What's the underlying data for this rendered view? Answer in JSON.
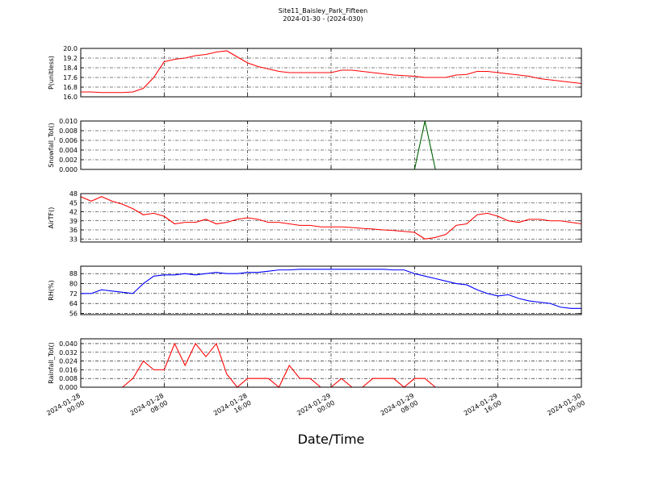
{
  "chart_data": {
    "title": "Site11_Baisley_Park_Fifteen",
    "subtitle": "2024-01-30 - (2024-030)",
    "xlabel": "Date/Time",
    "x": [
      "2024-01-28 00:00",
      "2024-01-28 01:00",
      "2024-01-28 02:00",
      "2024-01-28 03:00",
      "2024-01-28 04:00",
      "2024-01-28 05:00",
      "2024-01-28 06:00",
      "2024-01-28 07:00",
      "2024-01-28 08:00",
      "2024-01-28 09:00",
      "2024-01-28 10:00",
      "2024-01-28 11:00",
      "2024-01-28 12:00",
      "2024-01-28 13:00",
      "2024-01-28 14:00",
      "2024-01-28 15:00",
      "2024-01-28 16:00",
      "2024-01-28 17:00",
      "2024-01-28 18:00",
      "2024-01-28 19:00",
      "2024-01-28 20:00",
      "2024-01-28 21:00",
      "2024-01-28 22:00",
      "2024-01-28 23:00",
      "2024-01-29 00:00",
      "2024-01-29 01:00",
      "2024-01-29 02:00",
      "2024-01-29 03:00",
      "2024-01-29 04:00",
      "2024-01-29 05:00",
      "2024-01-29 06:00",
      "2024-01-29 07:00",
      "2024-01-29 08:00",
      "2024-01-29 09:00",
      "2024-01-29 10:00",
      "2024-01-29 11:00",
      "2024-01-29 12:00",
      "2024-01-29 13:00",
      "2024-01-29 14:00",
      "2024-01-29 15:00",
      "2024-01-29 16:00",
      "2024-01-29 17:00",
      "2024-01-29 18:00",
      "2024-01-29 19:00",
      "2024-01-29 20:00",
      "2024-01-29 21:00",
      "2024-01-29 22:00",
      "2024-01-29 23:00",
      "2024-01-30 00:00"
    ],
    "xlim": [
      "2024-01-28 00:00",
      "2024-01-30 00:00"
    ],
    "xticks": [
      {
        "value": "2024-01-28 00:00",
        "label": [
          "2024-01-28",
          "00:00"
        ]
      },
      {
        "value": "2024-01-28 08:00",
        "label": [
          "2024-01-28",
          "08:00"
        ]
      },
      {
        "value": "2024-01-28 16:00",
        "label": [
          "2024-01-28",
          "16:00"
        ]
      },
      {
        "value": "2024-01-29 00:00",
        "label": [
          "2024-01-29",
          "00:00"
        ]
      },
      {
        "value": "2024-01-29 08:00",
        "label": [
          "2024-01-29",
          "08:00"
        ]
      },
      {
        "value": "2024-01-29 16:00",
        "label": [
          "2024-01-29",
          "16:00"
        ]
      },
      {
        "value": "2024-01-30 00:00",
        "label": [
          "2024-01-30",
          "00:00"
        ]
      }
    ],
    "grid": true,
    "panels": [
      {
        "type": "line",
        "ylabel": "P(unitless)",
        "ylim": [
          16.0,
          20.0
        ],
        "yticks": [
          {
            "value": 16.0,
            "label": "16.0"
          },
          16.8,
          17.6,
          18.4,
          19.2,
          {
            "value": 20.0,
            "label": "20.0"
          }
        ],
        "series": [
          {
            "color": "#ff0000",
            "values": [
              16.4,
              16.4,
              16.35,
              16.35,
              16.35,
              16.4,
              16.7,
              17.6,
              18.9,
              19.1,
              19.2,
              19.4,
              19.5,
              19.7,
              19.8,
              19.3,
              18.8,
              18.5,
              18.3,
              18.1,
              18.0,
              18.0,
              18.0,
              18.0,
              18.0,
              18.2,
              18.2,
              18.1,
              18.0,
              17.9,
              17.8,
              17.75,
              17.7,
              17.6,
              17.6,
              17.6,
              17.8,
              17.85,
              18.1,
              18.1,
              18.0,
              17.9,
              17.8,
              17.7,
              17.5,
              17.4,
              17.3,
              17.2,
              17.1
            ]
          }
        ]
      },
      {
        "type": "line",
        "ylabel": "Snowfall_Tot()",
        "ylim": [
          0,
          0.01
        ],
        "yticks": [
          {
            "value": 0,
            "label": "0.000"
          },
          0.002,
          0.004,
          0.006,
          0.008,
          {
            "value": 0.01,
            "label": "0.010"
          }
        ],
        "series": [
          {
            "color": "#006400",
            "values": [
              0,
              0,
              0,
              0,
              0,
              0,
              0,
              0,
              0,
              0,
              0,
              0,
              0,
              0,
              0,
              0,
              0,
              0,
              0,
              0,
              0,
              0,
              0,
              0,
              0,
              0,
              0,
              0,
              0,
              0,
              0,
              0,
              0,
              0.01,
              0,
              0,
              0,
              0,
              0,
              0,
              0,
              0,
              0,
              0,
              0,
              0,
              0,
              0,
              0
            ]
          }
        ]
      },
      {
        "type": "line",
        "ylabel": "AirTF()",
        "ylim": [
          32,
          48
        ],
        "yticks": [
          33,
          36,
          39,
          42,
          45,
          48
        ],
        "series": [
          {
            "color": "#ff0000",
            "values": [
              47,
              45.5,
              47,
              45.5,
              44.5,
              43,
              41,
              41.5,
              40.5,
              38,
              38.5,
              38.5,
              39.5,
              38,
              38.5,
              39.5,
              40,
              39.5,
              38.5,
              38.5,
              38,
              37.5,
              37.5,
              37,
              37,
              37,
              36.8,
              36.5,
              36.3,
              36,
              35.8,
              35.5,
              35.2,
              33,
              33.5,
              34.5,
              37.5,
              38,
              41,
              41.5,
              40.5,
              39,
              38.5,
              39.5,
              39.5,
              39,
              39,
              38.5,
              38
            ]
          }
        ]
      },
      {
        "type": "line",
        "ylabel": "RH(%)",
        "ylim": [
          55,
          94
        ],
        "yticks": [
          56,
          64,
          72,
          80,
          88
        ],
        "series": [
          {
            "color": "#0000ff",
            "values": [
              72,
              72,
              75,
              74,
              73,
              72,
              80,
              86,
              87,
              87,
              88,
              87,
              88,
              89,
              88,
              88,
              89,
              89,
              90,
              91,
              91,
              91.5,
              91.5,
              91.5,
              91.5,
              91.5,
              91.5,
              91.5,
              91.5,
              91.5,
              91,
              91,
              88,
              86,
              84,
              82,
              80,
              79,
              75,
              72,
              70,
              71,
              68,
              66,
              65,
              64,
              61,
              60,
              60
            ]
          }
        ]
      },
      {
        "type": "line",
        "ylabel": "Rainfall_Tot()",
        "ylim": [
          0,
          0.0444
        ],
        "yticks": [
          {
            "value": 0,
            "label": "0.000"
          },
          0.008,
          0.016,
          0.024,
          0.032,
          {
            "value": 0.04,
            "label": "0.040"
          }
        ],
        "series": [
          {
            "color": "#ff0000",
            "values": [
              0,
              0,
              0,
              0,
              0,
              0.008,
              0.024,
              0.016,
              0.016,
              0.04,
              0.02,
              0.04,
              0.028,
              0.04,
              0.012,
              0,
              0.008,
              0.008,
              0.008,
              0,
              0.02,
              0.008,
              0.008,
              0,
              0,
              0.008,
              0,
              0,
              0.008,
              0.008,
              0.008,
              0,
              0.008,
              0.008,
              0,
              0,
              0,
              0,
              0,
              0,
              0,
              0,
              0,
              0,
              0,
              0,
              0,
              0,
              0
            ]
          }
        ]
      }
    ]
  }
}
